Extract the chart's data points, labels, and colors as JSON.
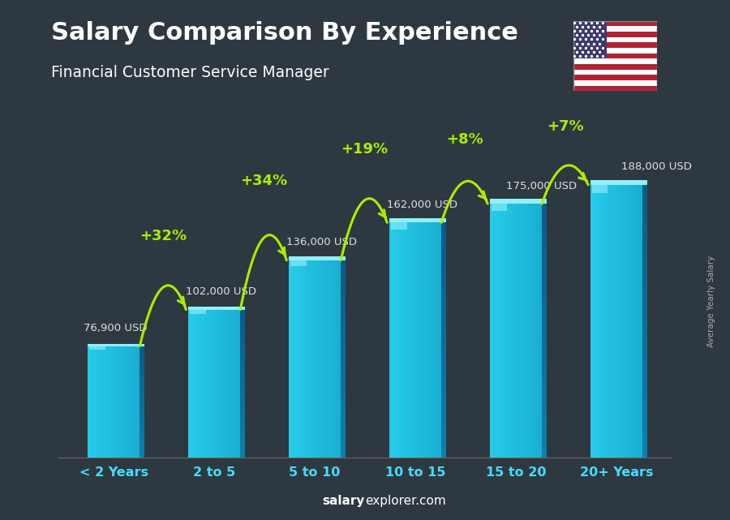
{
  "title": "Salary Comparison By Experience",
  "subtitle": "Financial Customer Service Manager",
  "categories": [
    "< 2 Years",
    "2 to 5",
    "5 to 10",
    "10 to 15",
    "15 to 20",
    "20+ Years"
  ],
  "values": [
    76900,
    102000,
    136000,
    162000,
    175000,
    188000
  ],
  "labels": [
    "76,900 USD",
    "102,000 USD",
    "136,000 USD",
    "162,000 USD",
    "175,000 USD",
    "188,000 USD"
  ],
  "pct_changes": [
    "+32%",
    "+34%",
    "+19%",
    "+8%",
    "+7%"
  ],
  "bar_color": "#29b6d8",
  "bar_highlight": "#5ee0f5",
  "bar_shadow": "#1a7a99",
  "bar_top": "#7aeeff",
  "bg_color": "#2b3a4a",
  "title_color": "#ffffff",
  "subtitle_color": "#ffffff",
  "label_color": "#e0e0e0",
  "pct_color": "#aaee00",
  "xtick_color": "#44ddff",
  "ylabel_text": "Average Yearly Salary",
  "footer_bold": "salary",
  "footer_normal": "explorer.com",
  "ylim": [
    0,
    215000
  ],
  "bar_width": 0.52
}
